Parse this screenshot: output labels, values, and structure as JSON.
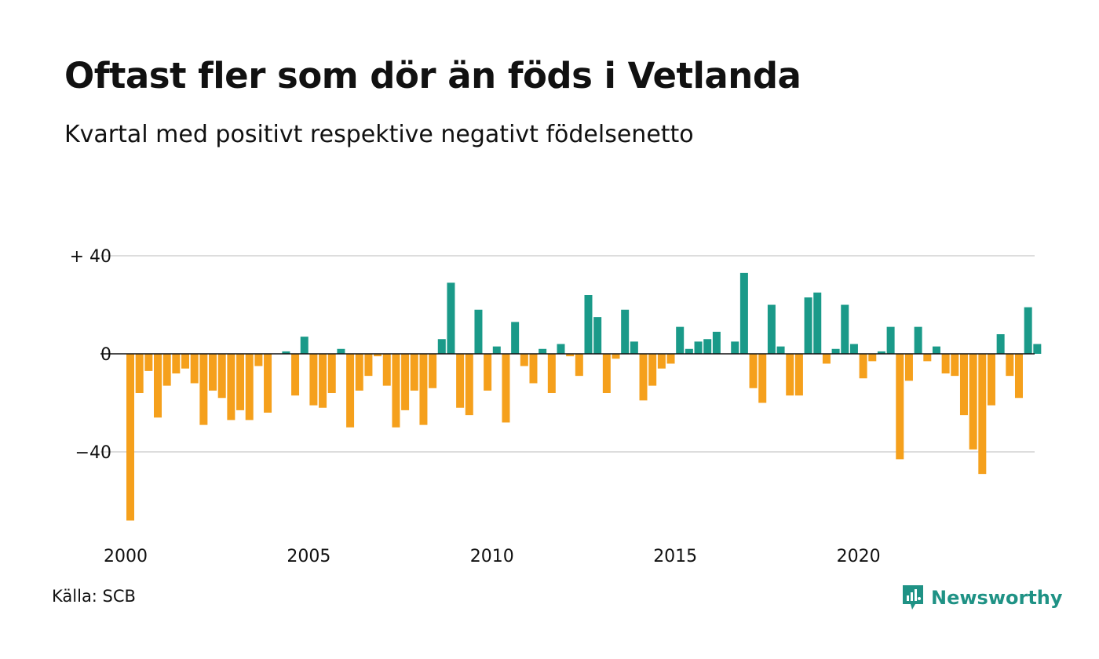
{
  "title": "Oftast fler som dör än föds i Vetlanda",
  "subtitle": "Kvartal med positivt respektive negativt födelsenetto",
  "source": "Källa: SCB",
  "brand": "Newsworthy",
  "colors": {
    "positive": "#1a9a89",
    "negative": "#f5a01c",
    "grid": "#dddddd",
    "axis": "#111111",
    "brand": "#1f9285"
  },
  "chart_data": {
    "type": "bar",
    "xlabel": "",
    "ylabel": "",
    "ylim": [
      -70,
      40
    ],
    "yticks": [
      {
        "value": 40,
        "label": "+ 40"
      },
      {
        "value": 0,
        "label": "0"
      },
      {
        "value": -40,
        "label": "−40"
      }
    ],
    "xticks": [
      "2000",
      "2005",
      "2010",
      "2015",
      "2020"
    ],
    "grid": true,
    "categories": [
      "2000 Q1",
      "2000 Q2",
      "2000 Q3",
      "2000 Q4",
      "2001 Q1",
      "2001 Q2",
      "2001 Q3",
      "2001 Q4",
      "2002 Q1",
      "2002 Q2",
      "2002 Q3",
      "2002 Q4",
      "2003 Q1",
      "2003 Q2",
      "2003 Q3",
      "2003 Q4",
      "2004 Q1",
      "2004 Q2",
      "2004 Q3",
      "2004 Q4",
      "2005 Q1",
      "2005 Q2",
      "2005 Q3",
      "2005 Q4",
      "2006 Q1",
      "2006 Q2",
      "2006 Q3",
      "2006 Q4",
      "2007 Q1",
      "2007 Q2",
      "2007 Q3",
      "2007 Q4",
      "2008 Q1",
      "2008 Q2",
      "2008 Q3",
      "2008 Q4",
      "2009 Q1",
      "2009 Q2",
      "2009 Q3",
      "2009 Q4",
      "2010 Q1",
      "2010 Q2",
      "2010 Q3",
      "2010 Q4",
      "2011 Q1",
      "2011 Q2",
      "2011 Q3",
      "2011 Q4",
      "2012 Q1",
      "2012 Q2",
      "2012 Q3",
      "2012 Q4",
      "2013 Q1",
      "2013 Q2",
      "2013 Q3",
      "2013 Q4",
      "2014 Q1",
      "2014 Q2",
      "2014 Q3",
      "2014 Q4",
      "2015 Q1",
      "2015 Q2",
      "2015 Q3",
      "2015 Q4",
      "2016 Q1",
      "2016 Q2",
      "2016 Q3",
      "2016 Q4",
      "2017 Q1",
      "2017 Q2",
      "2017 Q3",
      "2017 Q4",
      "2018 Q1",
      "2018 Q2",
      "2018 Q3",
      "2018 Q4",
      "2019 Q1",
      "2019 Q2",
      "2019 Q3",
      "2019 Q4",
      "2020 Q1",
      "2020 Q2",
      "2020 Q3",
      "2020 Q4",
      "2021 Q1",
      "2021 Q2",
      "2021 Q3",
      "2021 Q4",
      "2022 Q1",
      "2022 Q2",
      "2022 Q3",
      "2022 Q4",
      "2023 Q1",
      "2023 Q2",
      "2023 Q3",
      "2023 Q4",
      "2024 Q1",
      "2024 Q2",
      "2024 Q3",
      "2024 Q4"
    ],
    "values": [
      -68,
      -16,
      -7,
      -26,
      -13,
      -8,
      -6,
      -12,
      -29,
      -15,
      -18,
      -27,
      -23,
      -27,
      -5,
      -24,
      0,
      1,
      -17,
      7,
      -21,
      -22,
      -16,
      2,
      -30,
      -15,
      -9,
      -1,
      -13,
      -30,
      -23,
      -15,
      -29,
      -14,
      6,
      29,
      -22,
      -25,
      18,
      -15,
      3,
      -28,
      13,
      -5,
      -12,
      2,
      -16,
      4,
      -1,
      -9,
      24,
      15,
      -16,
      -2,
      18,
      5,
      -19,
      -13,
      -6,
      -4,
      11,
      2,
      5,
      6,
      9,
      0,
      5,
      33,
      -14,
      -20,
      20,
      3,
      -17,
      -17,
      23,
      25,
      -4,
      2,
      20,
      4,
      -10,
      -3,
      1,
      11,
      -43,
      -11,
      11,
      -3,
      3,
      -8,
      -9,
      -25,
      -39,
      -49,
      -21,
      8,
      -9,
      -18,
      19,
      4
    ]
  }
}
